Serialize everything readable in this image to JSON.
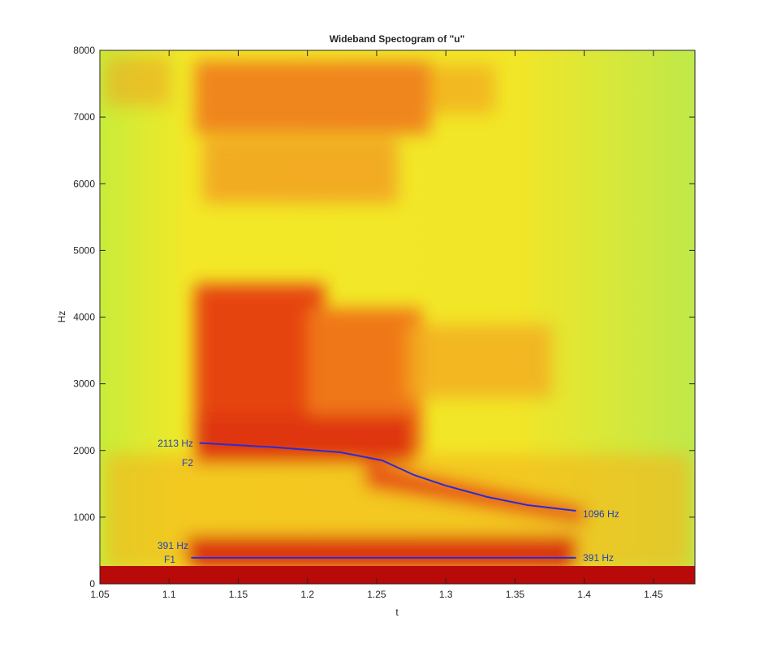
{
  "chart_data": {
    "type": "line",
    "title": "Wideband Spectogram of \"u\"",
    "x_label": "t",
    "y_label": "Hz",
    "xlim": [
      1.05,
      1.48
    ],
    "ylim": [
      0,
      8000
    ],
    "xticks": [
      1.05,
      1.1,
      1.15,
      1.2,
      1.25,
      1.3,
      1.35,
      1.4,
      1.45
    ],
    "yticks": [
      0,
      1000,
      2000,
      3000,
      4000,
      5000,
      6000,
      7000,
      8000
    ],
    "series": [
      {
        "name": "F2",
        "color": "#2b2bd6",
        "x": [
          1.122,
          1.175,
          1.224,
          1.254,
          1.277,
          1.3,
          1.33,
          1.359,
          1.394
        ],
        "values": [
          2113,
          2050,
          1973,
          1851,
          1632,
          1473,
          1303,
          1181,
          1096
        ]
      },
      {
        "name": "F1",
        "color": "#2b2bd6",
        "x": [
          1.116,
          1.394
        ],
        "values": [
          391,
          391
        ]
      }
    ],
    "annotations": [
      "2113 Hz",
      "F2",
      "1096 Hz",
      "391 Hz",
      "F1",
      "391 Hz"
    ]
  }
}
